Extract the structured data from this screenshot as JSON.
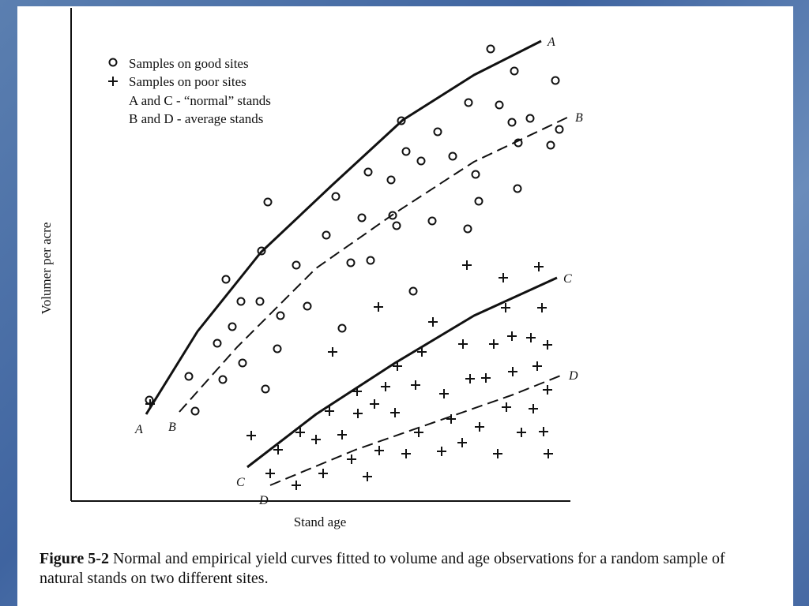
{
  "chart_data": {
    "type": "scatter",
    "xlabel": "Stand age",
    "ylabel": "Volumer per acre",
    "xlim": [
      0,
      632
    ],
    "ylim": [
      0,
      625
    ],
    "legend_notes": [
      "A and C - “normal” stands",
      "B and D - average stands"
    ],
    "series": [
      {
        "name": "Samples on good sites",
        "marker": "circle",
        "color": "#111111",
        "x": [
          99,
          149,
          157,
          185,
          192,
          196,
          204,
          215,
          217,
          239,
          241,
          246,
          249,
          261,
          265,
          285,
          299,
          323,
          335,
          343,
          354,
          368,
          376,
          379,
          405,
          407,
          412,
          418,
          424,
          433,
          443,
          457,
          464,
          483,
          502,
          503,
          512,
          516,
          531,
          542,
          558,
          561,
          565,
          566,
          581,
          607,
          613,
          618
        ],
        "values": [
          128,
          158,
          114,
          200,
          154,
          281,
          221,
          253,
          175,
          253,
          317,
          142,
          379,
          193,
          235,
          299,
          247,
          337,
          386,
          219,
          302,
          359,
          417,
          305,
          407,
          362,
          349,
          482,
          443,
          266,
          431,
          355,
          468,
          437,
          345,
          505,
          414,
          380,
          573,
          502,
          480,
          545,
          396,
          454,
          485,
          451,
          533,
          471
        ]
      },
      {
        "name": "Samples on poor sites",
        "marker": "plus",
        "color": "#111111",
        "x": [
          100,
          228,
          252,
          262,
          285,
          290,
          310,
          319,
          327,
          331,
          343,
          355,
          362,
          363,
          375,
          384,
          389,
          390,
          398,
          410,
          413,
          424,
          436,
          440,
          444,
          458,
          469,
          472,
          481,
          496,
          495,
          501,
          505,
          517,
          525,
          535,
          540,
          547,
          550,
          551,
          558,
          559,
          570,
          582,
          585,
          590,
          592,
          596,
          598,
          603,
          603,
          604
        ],
        "values": [
          123,
          83,
          35,
          65,
          20,
          87,
          78,
          35,
          114,
          189,
          84,
          53,
          139,
          111,
          31,
          123,
          246,
          64,
          145,
          112,
          171,
          60,
          147,
          87,
          189,
          227,
          63,
          136,
          104,
          199,
          74,
          299,
          155,
          94,
          156,
          199,
          60,
          283,
          245,
          119,
          209,
          164,
          87,
          207,
          117,
          171,
          297,
          245,
          88,
          198,
          141,
          60
        ]
      },
      {
        "name": "A",
        "type": "line",
        "dashed": false,
        "color": "#111111",
        "x": [
          95,
          160,
          240,
          330,
          420,
          510,
          595
        ],
        "values": [
          110,
          215,
          315,
          400,
          483,
          540,
          583
        ]
      },
      {
        "name": "B",
        "type": "line",
        "dashed": true,
        "color": "#111111",
        "x": [
          137,
          210,
          310,
          410,
          510,
          630
        ],
        "values": [
          113,
          195,
          295,
          365,
          430,
          487
        ]
      },
      {
        "name": "C",
        "type": "line",
        "dashed": false,
        "color": "#111111",
        "x": [
          223,
          310,
          410,
          510,
          615
        ],
        "values": [
          43,
          110,
          175,
          235,
          283
        ]
      },
      {
        "name": "D",
        "type": "line",
        "dashed": true,
        "color": "#111111",
        "x": [
          252,
          360,
          460,
          560,
          622
        ],
        "values": [
          20,
          65,
          100,
          135,
          160
        ]
      }
    ]
  },
  "caption": {
    "label": "Figure 5-2",
    "text": "Normal and empirical yield curves fitted to volume and age observations for a random sample of natural stands on two different sites."
  }
}
